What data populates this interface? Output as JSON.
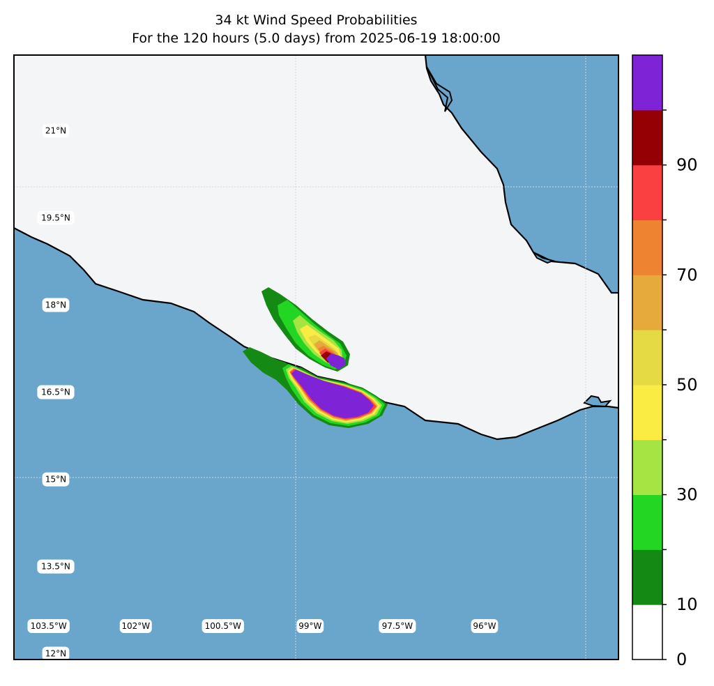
{
  "title": {
    "line1": "34 kt Wind Speed Probabilities",
    "line2": "For the 120 hours (5.0 days) from 2025-06-19 18:00:00"
  },
  "map": {
    "lon_range": [
      -104.0,
      -93.6
    ],
    "lat_range": [
      11.9,
      22.3
    ],
    "ocean_color": "#6aa6cc",
    "land_color": "#f4f5f7",
    "coast_color": "#000000",
    "gridlines": true,
    "lat_labels": [
      "21°N",
      "19.5°N",
      "18°N",
      "16.5°N",
      "15°N",
      "13.5°N",
      "12°N"
    ],
    "lon_labels": [
      "103.5°W",
      "102°W",
      "100.5°W",
      "99°W",
      "97.5°W",
      "96°W"
    ]
  },
  "chart_data": {
    "type": "heatmap",
    "title": "34 kt Wind Speed Probabilities",
    "subtitle": "For the 120 hours (5.0 days) from 2025-06-19 18:00:00",
    "colorbar": {
      "range": [
        0,
        100
      ],
      "levels": [
        0,
        10,
        20,
        30,
        40,
        50,
        60,
        70,
        80,
        90,
        100
      ],
      "colors": [
        "#ffffff",
        "#148a14",
        "#24d624",
        "#a6e444",
        "#fbec44",
        "#e6da44",
        "#e6aa3c",
        "#ee8432",
        "#fa4040",
        "#940004",
        "#7e24d6"
      ],
      "tick_labels": [
        "0",
        "10",
        "30",
        "50",
        "70",
        "90"
      ]
    },
    "regions": [
      {
        "name": "inland swath",
        "max_probability": 100,
        "approx_center": [
          -99.3,
          17.1
        ]
      },
      {
        "name": "offshore swath",
        "max_probability": 100,
        "approx_center": [
          -99.1,
          16.4
        ]
      }
    ]
  }
}
